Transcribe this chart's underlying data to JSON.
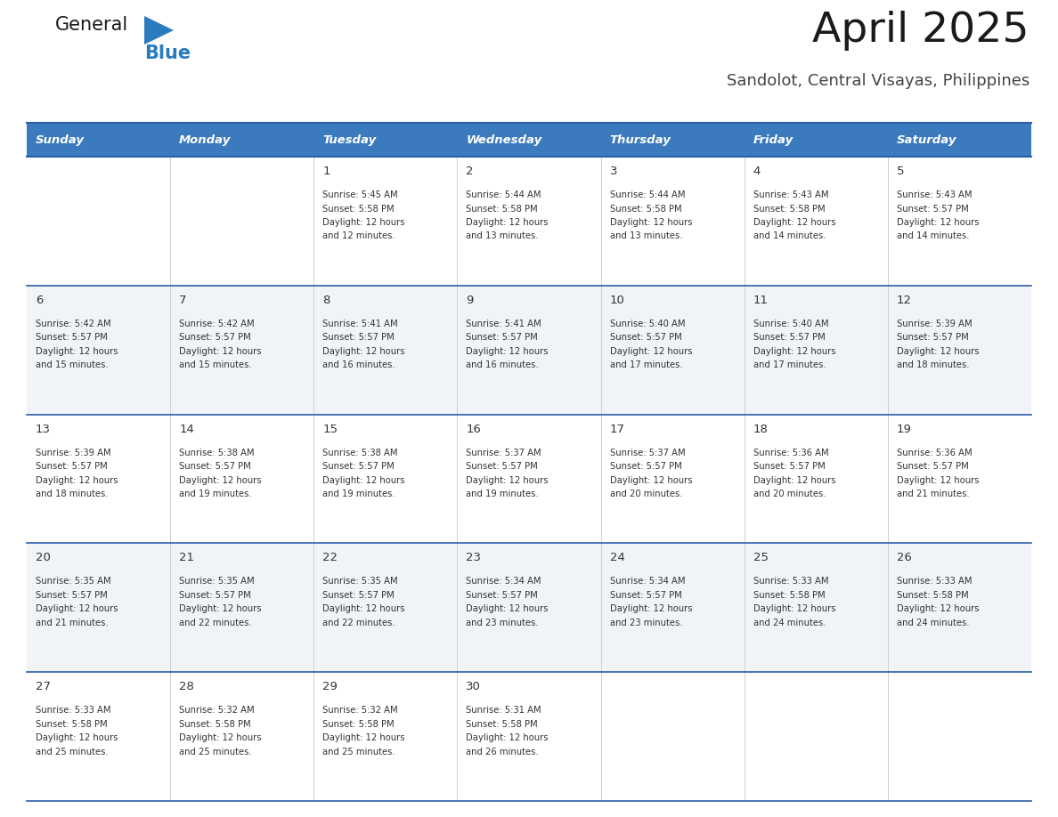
{
  "title": "April 2025",
  "subtitle": "Sandolot, Central Visayas, Philippines",
  "header_bg_color": "#3A7ABD",
  "header_text_color": "#FFFFFF",
  "row_bg_even": "#FFFFFF",
  "row_bg_odd": "#F0F4F8",
  "day_headers": [
    "Sunday",
    "Monday",
    "Tuesday",
    "Wednesday",
    "Thursday",
    "Friday",
    "Saturday"
  ],
  "divider_color": "#2B5EA7",
  "text_color": "#333333",
  "days": [
    {
      "day": 1,
      "col": 2,
      "row": 0,
      "sunrise": "5:45 AM",
      "sunset": "5:58 PM",
      "daylight_hours": 12,
      "daylight_minutes": 12
    },
    {
      "day": 2,
      "col": 3,
      "row": 0,
      "sunrise": "5:44 AM",
      "sunset": "5:58 PM",
      "daylight_hours": 12,
      "daylight_minutes": 13
    },
    {
      "day": 3,
      "col": 4,
      "row": 0,
      "sunrise": "5:44 AM",
      "sunset": "5:58 PM",
      "daylight_hours": 12,
      "daylight_minutes": 13
    },
    {
      "day": 4,
      "col": 5,
      "row": 0,
      "sunrise": "5:43 AM",
      "sunset": "5:58 PM",
      "daylight_hours": 12,
      "daylight_minutes": 14
    },
    {
      "day": 5,
      "col": 6,
      "row": 0,
      "sunrise": "5:43 AM",
      "sunset": "5:57 PM",
      "daylight_hours": 12,
      "daylight_minutes": 14
    },
    {
      "day": 6,
      "col": 0,
      "row": 1,
      "sunrise": "5:42 AM",
      "sunset": "5:57 PM",
      "daylight_hours": 12,
      "daylight_minutes": 15
    },
    {
      "day": 7,
      "col": 1,
      "row": 1,
      "sunrise": "5:42 AM",
      "sunset": "5:57 PM",
      "daylight_hours": 12,
      "daylight_minutes": 15
    },
    {
      "day": 8,
      "col": 2,
      "row": 1,
      "sunrise": "5:41 AM",
      "sunset": "5:57 PM",
      "daylight_hours": 12,
      "daylight_minutes": 16
    },
    {
      "day": 9,
      "col": 3,
      "row": 1,
      "sunrise": "5:41 AM",
      "sunset": "5:57 PM",
      "daylight_hours": 12,
      "daylight_minutes": 16
    },
    {
      "day": 10,
      "col": 4,
      "row": 1,
      "sunrise": "5:40 AM",
      "sunset": "5:57 PM",
      "daylight_hours": 12,
      "daylight_minutes": 17
    },
    {
      "day": 11,
      "col": 5,
      "row": 1,
      "sunrise": "5:40 AM",
      "sunset": "5:57 PM",
      "daylight_hours": 12,
      "daylight_minutes": 17
    },
    {
      "day": 12,
      "col": 6,
      "row": 1,
      "sunrise": "5:39 AM",
      "sunset": "5:57 PM",
      "daylight_hours": 12,
      "daylight_minutes": 18
    },
    {
      "day": 13,
      "col": 0,
      "row": 2,
      "sunrise": "5:39 AM",
      "sunset": "5:57 PM",
      "daylight_hours": 12,
      "daylight_minutes": 18
    },
    {
      "day": 14,
      "col": 1,
      "row": 2,
      "sunrise": "5:38 AM",
      "sunset": "5:57 PM",
      "daylight_hours": 12,
      "daylight_minutes": 19
    },
    {
      "day": 15,
      "col": 2,
      "row": 2,
      "sunrise": "5:38 AM",
      "sunset": "5:57 PM",
      "daylight_hours": 12,
      "daylight_minutes": 19
    },
    {
      "day": 16,
      "col": 3,
      "row": 2,
      "sunrise": "5:37 AM",
      "sunset": "5:57 PM",
      "daylight_hours": 12,
      "daylight_minutes": 19
    },
    {
      "day": 17,
      "col": 4,
      "row": 2,
      "sunrise": "5:37 AM",
      "sunset": "5:57 PM",
      "daylight_hours": 12,
      "daylight_minutes": 20
    },
    {
      "day": 18,
      "col": 5,
      "row": 2,
      "sunrise": "5:36 AM",
      "sunset": "5:57 PM",
      "daylight_hours": 12,
      "daylight_minutes": 20
    },
    {
      "day": 19,
      "col": 6,
      "row": 2,
      "sunrise": "5:36 AM",
      "sunset": "5:57 PM",
      "daylight_hours": 12,
      "daylight_minutes": 21
    },
    {
      "day": 20,
      "col": 0,
      "row": 3,
      "sunrise": "5:35 AM",
      "sunset": "5:57 PM",
      "daylight_hours": 12,
      "daylight_minutes": 21
    },
    {
      "day": 21,
      "col": 1,
      "row": 3,
      "sunrise": "5:35 AM",
      "sunset": "5:57 PM",
      "daylight_hours": 12,
      "daylight_minutes": 22
    },
    {
      "day": 22,
      "col": 2,
      "row": 3,
      "sunrise": "5:35 AM",
      "sunset": "5:57 PM",
      "daylight_hours": 12,
      "daylight_minutes": 22
    },
    {
      "day": 23,
      "col": 3,
      "row": 3,
      "sunrise": "5:34 AM",
      "sunset": "5:57 PM",
      "daylight_hours": 12,
      "daylight_minutes": 23
    },
    {
      "day": 24,
      "col": 4,
      "row": 3,
      "sunrise": "5:34 AM",
      "sunset": "5:57 PM",
      "daylight_hours": 12,
      "daylight_minutes": 23
    },
    {
      "day": 25,
      "col": 5,
      "row": 3,
      "sunrise": "5:33 AM",
      "sunset": "5:58 PM",
      "daylight_hours": 12,
      "daylight_minutes": 24
    },
    {
      "day": 26,
      "col": 6,
      "row": 3,
      "sunrise": "5:33 AM",
      "sunset": "5:58 PM",
      "daylight_hours": 12,
      "daylight_minutes": 24
    },
    {
      "day": 27,
      "col": 0,
      "row": 4,
      "sunrise": "5:33 AM",
      "sunset": "5:58 PM",
      "daylight_hours": 12,
      "daylight_minutes": 25
    },
    {
      "day": 28,
      "col": 1,
      "row": 4,
      "sunrise": "5:32 AM",
      "sunset": "5:58 PM",
      "daylight_hours": 12,
      "daylight_minutes": 25
    },
    {
      "day": 29,
      "col": 2,
      "row": 4,
      "sunrise": "5:32 AM",
      "sunset": "5:58 PM",
      "daylight_hours": 12,
      "daylight_minutes": 25
    },
    {
      "day": 30,
      "col": 3,
      "row": 4,
      "sunrise": "5:31 AM",
      "sunset": "5:58 PM",
      "daylight_hours": 12,
      "daylight_minutes": 26
    }
  ],
  "logo_triangle_color": "#2B7BBF",
  "fig_width": 11.88,
  "fig_height": 9.18,
  "dpi": 100
}
